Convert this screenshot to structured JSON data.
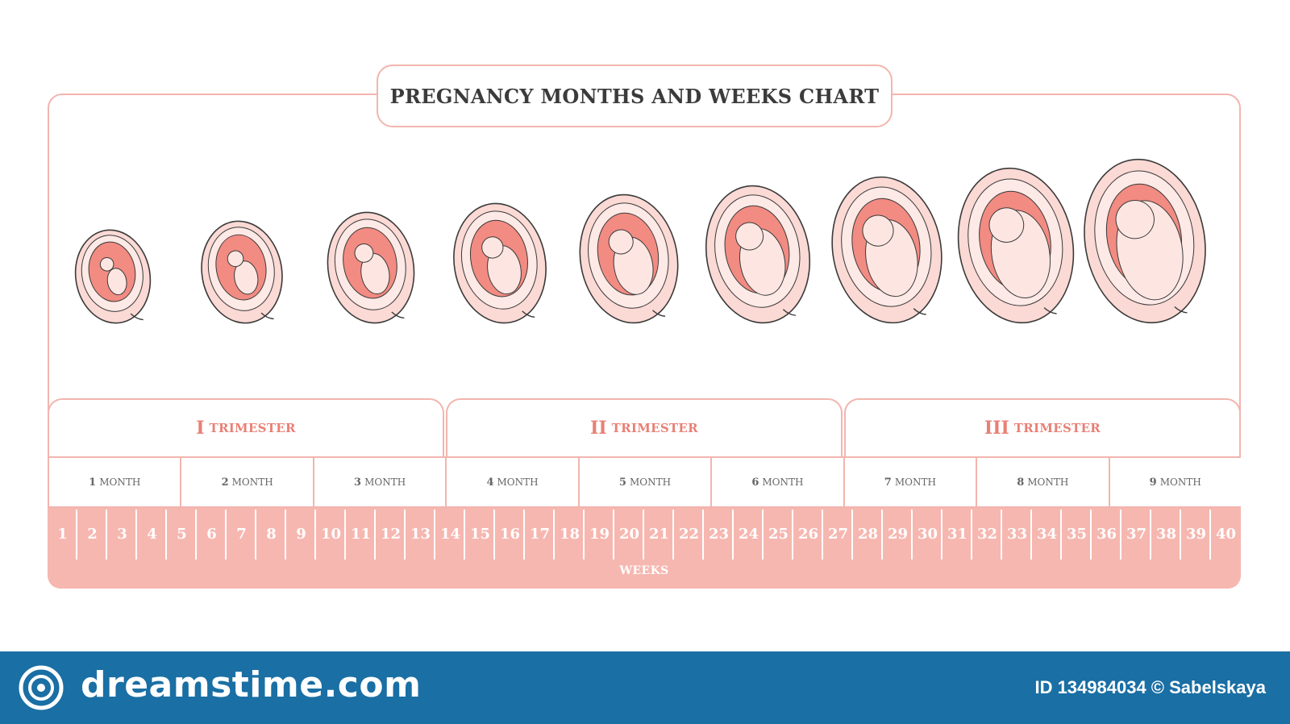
{
  "title": "PREGNANCY MONTHS AND WEEKS CHART",
  "trimesters": [
    {
      "numeral": "I",
      "word": "TRIMESTER"
    },
    {
      "numeral": "II",
      "word": "TRIMESTER"
    },
    {
      "numeral": "III",
      "word": "TRIMESTER"
    }
  ],
  "months": [
    {
      "num": "1",
      "word": "MONTH"
    },
    {
      "num": "2",
      "word": "MONTH"
    },
    {
      "num": "3",
      "word": "MONTH"
    },
    {
      "num": "4",
      "word": "MONTH"
    },
    {
      "num": "5",
      "word": "MONTH"
    },
    {
      "num": "6",
      "word": "MONTH"
    },
    {
      "num": "7",
      "word": "MONTH"
    },
    {
      "num": "8",
      "word": "MONTH"
    },
    {
      "num": "9",
      "word": "MONTH"
    }
  ],
  "weeks": [
    "1",
    "2",
    "3",
    "4",
    "5",
    "6",
    "7",
    "8",
    "9",
    "10",
    "11",
    "12",
    "13",
    "14",
    "15",
    "16",
    "17",
    "18",
    "19",
    "20",
    "21",
    "22",
    "23",
    "24",
    "25",
    "26",
    "27",
    "28",
    "29",
    "30",
    "31",
    "32",
    "33",
    "34",
    "35",
    "36",
    "37",
    "38",
    "39",
    "40"
  ],
  "weeks_caption": "WEEKS",
  "fetus_stages": [
    "month-1",
    "month-2",
    "month-3",
    "month-4",
    "month-5",
    "month-6",
    "month-7",
    "month-8",
    "month-9"
  ],
  "footer": {
    "brand": "dreamstime.com",
    "stock_id": "ID 134984034 © Sabelskaya"
  },
  "colors": {
    "accent": "#e98076",
    "border": "#f2b5ae",
    "band": "#f6b7b0",
    "sac_outer": "#fbd9d4",
    "sac_inner": "#f28b82",
    "skin": "#fde6e2",
    "footer_bg": "#1a6fa4"
  }
}
